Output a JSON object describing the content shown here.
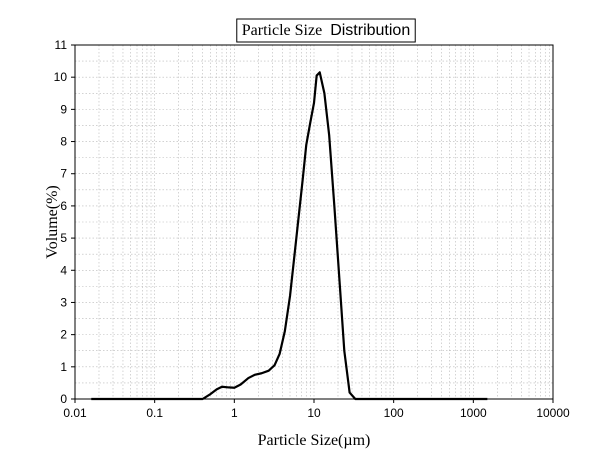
{
  "chart_data": {
    "type": "line",
    "title_part1": "Particle Size",
    "title_part2": "Distribution",
    "xlabel": "Particle Size(µm)",
    "ylabel": "Volume(%)",
    "x_scale": "log",
    "xlim": [
      0.01,
      10000
    ],
    "ylim": [
      0,
      11
    ],
    "x_ticks": [
      0.01,
      0.1,
      1,
      10,
      100,
      1000,
      10000
    ],
    "x_tick_labels": [
      "0.01",
      "0.1",
      "1",
      "10",
      "100",
      "1000",
      "10000"
    ],
    "y_ticks": [
      0,
      1,
      2,
      3,
      4,
      5,
      6,
      7,
      8,
      9,
      10,
      11
    ],
    "y_tick_labels": [
      "0",
      "1",
      "2",
      "3",
      "4",
      "5",
      "6",
      "7",
      "8",
      "9",
      "10",
      "11"
    ],
    "grid": true,
    "line_color": "#000000",
    "series": [
      {
        "points": [
          [
            0.016,
            0
          ],
          [
            0.1,
            0
          ],
          [
            0.4,
            0
          ],
          [
            0.5,
            0.15
          ],
          [
            0.6,
            0.3
          ],
          [
            0.7,
            0.38
          ],
          [
            0.85,
            0.36
          ],
          [
            1.0,
            0.35
          ],
          [
            1.2,
            0.45
          ],
          [
            1.5,
            0.65
          ],
          [
            1.8,
            0.75
          ],
          [
            2.2,
            0.8
          ],
          [
            2.7,
            0.88
          ],
          [
            3.2,
            1.05
          ],
          [
            3.7,
            1.4
          ],
          [
            4.3,
            2.1
          ],
          [
            5.0,
            3.2
          ],
          [
            6.0,
            5.0
          ],
          [
            7.2,
            6.8
          ],
          [
            8.0,
            7.9
          ],
          [
            9.0,
            8.6
          ],
          [
            10.0,
            9.2
          ],
          [
            10.8,
            10.05
          ],
          [
            11.8,
            10.15
          ],
          [
            13.5,
            9.5
          ],
          [
            15.5,
            8.2
          ],
          [
            18.0,
            6.0
          ],
          [
            21.0,
            3.6
          ],
          [
            24.0,
            1.5
          ],
          [
            28.0,
            0.2
          ],
          [
            33.0,
            0
          ],
          [
            100,
            0
          ],
          [
            1000,
            0
          ],
          [
            1500,
            0
          ]
        ]
      }
    ]
  }
}
